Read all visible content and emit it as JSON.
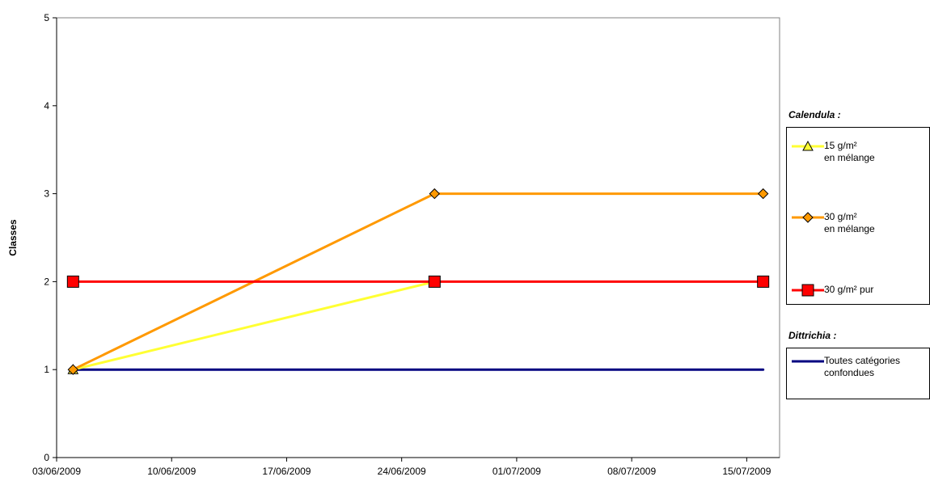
{
  "chart_data": {
    "type": "line",
    "title": "",
    "xlabel": "",
    "ylabel": "Classes",
    "ylim": [
      0,
      5
    ],
    "yticks": [
      "0",
      "1",
      "2",
      "3",
      "4",
      "5"
    ],
    "x_axis_dates": [
      "2009-06-03",
      "2009-07-17"
    ],
    "xtick_labels": [
      "03/06/2009",
      "10/06/2009",
      "17/06/2009",
      "24/06/2009",
      "01/07/2009",
      "08/07/2009",
      "15/07/2009"
    ],
    "grid": false,
    "legend_position": "right",
    "legend_groups": [
      {
        "heading": "Calendula :",
        "entries": [
          "15 g/m²\nen mélange",
          "30 g/m²\nen mélange",
          "30 g/m² pur"
        ]
      },
      {
        "heading": "Dittrichia :",
        "entries": [
          "Toutes catégories\nconfondues"
        ]
      }
    ],
    "series": [
      {
        "name": "15 g/m² en mélange",
        "color": "#ffff33",
        "marker": "triangle",
        "points": [
          {
            "x": "2009-06-04",
            "y": 1
          },
          {
            "x": "2009-06-26",
            "y": 2
          }
        ]
      },
      {
        "name": "30 g/m² en mélange",
        "color": "#ff9900",
        "marker": "diamond",
        "points": [
          {
            "x": "2009-06-04",
            "y": 1
          },
          {
            "x": "2009-06-26",
            "y": 3
          },
          {
            "x": "2009-07-16",
            "y": 3
          }
        ]
      },
      {
        "name": "30 g/m² pur",
        "color": "#ff0000",
        "marker": "square",
        "points": [
          {
            "x": "2009-06-04",
            "y": 2
          },
          {
            "x": "2009-06-26",
            "y": 2
          },
          {
            "x": "2009-07-16",
            "y": 2
          }
        ]
      },
      {
        "name": "Toutes catégories confondues",
        "color": "#000080",
        "marker": "none",
        "points": [
          {
            "x": "2009-06-04",
            "y": 1
          },
          {
            "x": "2009-07-16",
            "y": 1
          }
        ]
      }
    ]
  }
}
